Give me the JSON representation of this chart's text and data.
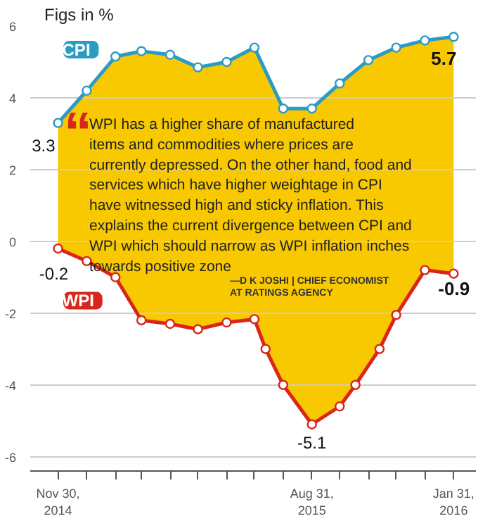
{
  "chart_data": {
    "type": "line",
    "ylabel": "Figs in %",
    "x": [
      "2014-11-30",
      "2014-12-31",
      "2015-01-31",
      "2015-02-28",
      "2015-03-31",
      "2015-04-30",
      "2015-05-31",
      "2015-06-30",
      "2015-07-31",
      "2015-08-31",
      "2015-09-30",
      "2015-10-31",
      "2015-11-30",
      "2015-12-31",
      "2016-01-31"
    ],
    "series": [
      {
        "name": "CPI",
        "color": "#2b9bc4",
        "values": [
          3.3,
          4.2,
          5.15,
          5.3,
          5.2,
          4.85,
          5.0,
          5.4,
          3.7,
          3.7,
          4.4,
          5.05,
          5.4,
          5.6,
          5.7
        ],
        "value_labels": [
          "3.3",
          null,
          null,
          null,
          null,
          null,
          null,
          null,
          null,
          null,
          null,
          null,
          null,
          null,
          "5.7"
        ]
      },
      {
        "name": "WPI",
        "color": "#d9261c",
        "x": [
          "2014-11-30",
          "2014-12-31",
          "2015-01-31",
          "2015-02-28",
          "2015-03-31",
          "2015-04-30",
          "2015-05-31",
          "2015-06-30",
          "2015-07-12",
          "2015-07-31",
          "2015-08-31",
          "2015-09-30",
          "2015-10-17",
          "2015-11-12",
          "2015-11-30",
          "2015-12-31",
          "2016-01-31"
        ],
        "values": [
          -0.2,
          -0.55,
          -1.0,
          -2.2,
          -2.3,
          -2.45,
          -2.26,
          -2.17,
          -3.0,
          -4.0,
          -5.1,
          -4.6,
          -4.0,
          -3.0,
          -2.05,
          -0.8,
          -0.9
        ],
        "lower": [
          -0.2,
          -0.55,
          -1.0,
          -2.2,
          -2.3,
          -2.45,
          -2.26,
          -2.17,
          -3.0,
          -4.0,
          -5.1,
          -4.6,
          -4.0,
          -3.0,
          -2.05,
          -0.8,
          -0.9
        ],
        "upper": [
          3.3,
          4.2,
          5.15,
          5.3,
          5.2,
          4.85,
          5.0,
          5.4,
          4.74,
          3.7,
          3.7,
          4.4,
          4.76,
          5.19,
          5.4,
          5.6,
          5.7
        ],
        "value_labels": [
          "-0.2",
          null,
          null,
          null,
          null,
          null,
          null,
          null,
          null,
          null,
          "-5.1",
          null,
          null,
          null,
          null,
          null,
          "-0.9"
        ]
      }
    ],
    "ylim": [
      -6.4,
      6
    ],
    "yticks": [
      -6,
      -4,
      -2,
      0,
      2,
      4,
      6
    ],
    "xlim": [
      "2014-10-31",
      "2016-02-24"
    ],
    "xticks": [
      {
        "value": "2014-11-30",
        "label": "Nov 30,\n2014"
      },
      {
        "value": "2014-12-31",
        "label": null
      },
      {
        "value": "2015-01-31",
        "label": null
      },
      {
        "value": "2015-02-28",
        "label": null
      },
      {
        "value": "2015-03-31",
        "label": null
      },
      {
        "value": "2015-04-30",
        "label": null
      },
      {
        "value": "2015-05-31",
        "label": null
      },
      {
        "value": "2015-06-30",
        "label": null
      },
      {
        "value": "2015-07-31",
        "label": null
      },
      {
        "value": "2015-08-31",
        "label": "Aug 31,\n2015"
      },
      {
        "value": "2015-09-30",
        "label": null
      },
      {
        "value": "2015-10-31",
        "label": null
      },
      {
        "value": "2015-11-30",
        "label": null
      },
      {
        "value": "2015-12-31",
        "label": null
      },
      {
        "value": "2016-01-31",
        "label": "Jan 31,\n2016"
      }
    ],
    "grid": "y",
    "marker": "circle",
    "line_style": "solid",
    "annotations": [
      "“",
      "WPI has a higher share of manufactured\nitems and commodities where prices are\ncurrently depressed. On the other hand, food and\nservices which have higher weightage in CPI\nhave witnessed high and sticky inflation. This\nexplains the current divergence between CPI and\nWPI which should narrow as WPI inflation inches\ntowards positive zone",
      "—D K JOSHI | CHIEF ECONOMIST\nAT RATINGS AGENCY"
    ]
  }
}
